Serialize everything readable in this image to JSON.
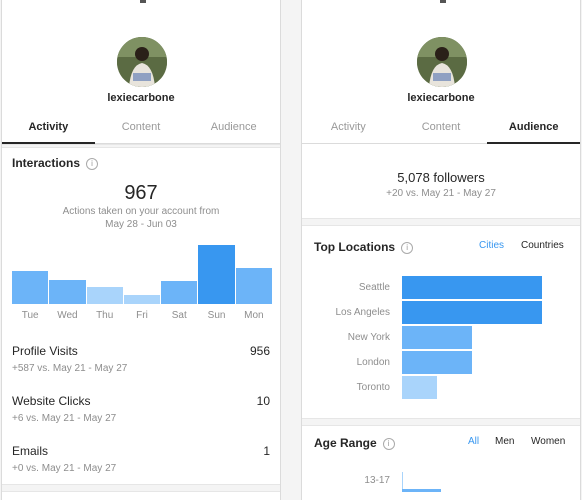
{
  "profile": {
    "username": "lexiecarbone"
  },
  "left": {
    "tabs": [
      {
        "label": "Activity"
      },
      {
        "label": "Content"
      },
      {
        "label": "Audience"
      }
    ],
    "interactions": {
      "title": "Interactions",
      "info_icon": "i",
      "total": "967",
      "caption_line1": "Actions taken on your account from",
      "caption_line2": "May 28 - Jun 03"
    },
    "metrics": [
      {
        "label": "Profile Visits",
        "value": "956",
        "sub": "+587 vs. May 21 - May 27"
      },
      {
        "label": "Website Clicks",
        "value": "10",
        "sub": "+6 vs. May 21 - May 27"
      },
      {
        "label": "Emails",
        "value": "1",
        "sub": "+0 vs. May 21 - May 27"
      }
    ]
  },
  "right": {
    "tabs": [
      {
        "label": "Activity"
      },
      {
        "label": "Content"
      },
      {
        "label": "Audience"
      }
    ],
    "followers": "5,078 followers",
    "followers_change": "+20 vs. May 21 - May 27",
    "top_locations": {
      "title": "Top Locations",
      "info_icon": "i",
      "filters": [
        {
          "label": "Cities"
        },
        {
          "label": "Countries"
        }
      ]
    },
    "age_range": {
      "title": "Age Range",
      "info_icon": "i",
      "filters": [
        {
          "label": "All"
        },
        {
          "label": "Men"
        },
        {
          "label": "Women"
        }
      ],
      "first_bucket": "13-17"
    }
  },
  "colors": {
    "bar_dark": "#3897f0",
    "bar_mid": "#6cb4f8",
    "bar_light": "#a9d4fb",
    "accent": "#3897f0"
  },
  "chart_data": [
    {
      "type": "bar",
      "categories": [
        "Tue",
        "Wed",
        "Thu",
        "Fri",
        "Sat",
        "Sun",
        "Mon"
      ],
      "values": [
        28,
        21,
        15,
        8,
        20,
        51,
        31
      ],
      "ylim": [
        0,
        55
      ],
      "title": "",
      "xlabel": "",
      "ylabel": ""
    },
    {
      "type": "bar",
      "orientation": "horizontal",
      "categories": [
        "Seattle",
        "Los Angeles",
        "New York",
        "London",
        "Toronto"
      ],
      "values": [
        100,
        100,
        50,
        50,
        25
      ],
      "title": "",
      "xlabel": "",
      "ylabel": ""
    },
    {
      "type": "bar",
      "orientation": "horizontal",
      "categories": [
        "13-17"
      ],
      "values": [
        28
      ],
      "title": "",
      "xlabel": "",
      "ylabel": ""
    }
  ]
}
